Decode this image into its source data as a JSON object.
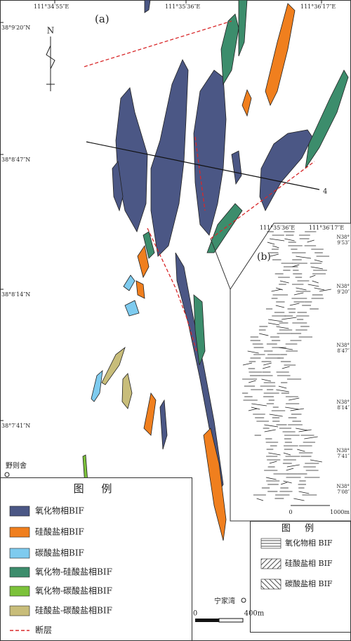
{
  "panel_a": {
    "label": "(a)",
    "north": "N",
    "section_end": "4",
    "lon_labels": [
      "111°34′55″E",
      "111°35′36″E",
      "111°36′17″E"
    ],
    "lat_labels": [
      "38°9′20″N",
      "38°8′47″N",
      "38°8′14″N",
      "38°7′41″N"
    ],
    "places": [
      "野则舍",
      "宁家湾"
    ],
    "scale": [
      "0",
      "400m"
    ]
  },
  "legend": {
    "title": "图 例",
    "items": [
      {
        "label": "氧化物相BIF",
        "color": "#4b5785"
      },
      {
        "label": "硅酸盐相BIF",
        "color": "#f07f1e"
      },
      {
        "label": "碳酸盐相BIF",
        "color": "#7ecbef"
      },
      {
        "label": "氧化物-硅酸盐相BIF",
        "color": "#3c8d6c"
      },
      {
        "label": "氧化物-碳酸盐相BIF",
        "color": "#7cc23a"
      },
      {
        "label": "硅酸盐-碳酸盐相BIF",
        "color": "#c8bd7a"
      },
      {
        "label": "断层",
        "color": "#d8282a",
        "symbol": "dashed-line"
      }
    ]
  },
  "panel_b": {
    "label": "(b)",
    "lon_labels": [
      "111°35′36″E",
      "111°36′17″E"
    ],
    "lat_labels": [
      [
        "N38°",
        "9′53″"
      ],
      [
        "N38°",
        "9′20″"
      ],
      [
        "N38°",
        "8′47″"
      ],
      [
        "N38°",
        "8′14″"
      ],
      [
        "N38°",
        "7′41″"
      ],
      [
        "N38°",
        "7′08″"
      ]
    ],
    "scale": [
      "0",
      "1000m"
    ],
    "legend": {
      "title": "图 例",
      "items": [
        "氧化物相 BIF",
        "硅酸盐相 BIF",
        "碳酸盐相 BIF"
      ]
    }
  }
}
